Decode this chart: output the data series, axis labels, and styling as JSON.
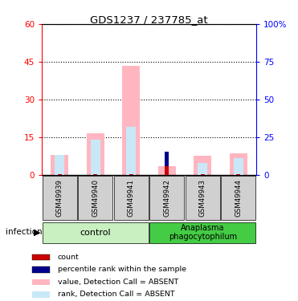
{
  "title": "GDS1237 / 237785_at",
  "samples": [
    "GSM49939",
    "GSM49940",
    "GSM49941",
    "GSM49942",
    "GSM49943",
    "GSM49944"
  ],
  "value_pink": [
    8.0,
    16.5,
    43.5,
    3.5,
    7.5,
    8.5
  ],
  "rank_lightblue": [
    8.0,
    14.0,
    19.0,
    0.0,
    4.5,
    6.5
  ],
  "count_red": [
    0.25,
    0.25,
    0.25,
    3.5,
    0.25,
    0.25
  ],
  "percentile_blue": [
    0.0,
    0.0,
    0.0,
    5.5,
    0.0,
    0.0
  ],
  "ylim_left": [
    0,
    60
  ],
  "ylim_right": [
    0,
    100
  ],
  "yticks_left": [
    0,
    15,
    30,
    45,
    60
  ],
  "yticks_right": [
    0,
    25,
    50,
    75,
    100
  ],
  "yticklabels_right": [
    "0",
    "25",
    "50",
    "75",
    "100%"
  ],
  "color_pink": "#FFB6C1",
  "color_lightblue": "#C8E8F8",
  "color_red": "#CC0000",
  "color_darkblue": "#00008B",
  "bar_width": 0.5,
  "infection_label": "infection",
  "group_label_1": "control",
  "group_label_2": "Anaplasma\nphagocytophilum",
  "legend_items": [
    "count",
    "percentile rank within the sample",
    "value, Detection Call = ABSENT",
    "rank, Detection Call = ABSENT"
  ],
  "legend_colors": [
    "#CC0000",
    "#00008B",
    "#FFB6C1",
    "#C8E8F8"
  ],
  "control_color": "#c8f0c0",
  "anaplasma_color": "#44cc44",
  "sample_bg_color": "#d0d0d0"
}
